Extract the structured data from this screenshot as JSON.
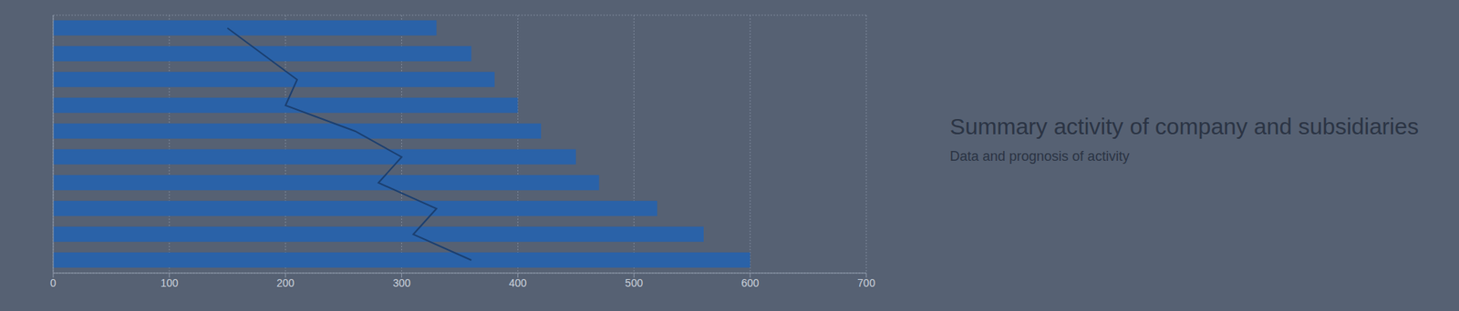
{
  "chart_data": {
    "type": "bar",
    "title": "Summary activity of company and subsidiaries",
    "subtitle": "Data and prognosis of activity",
    "orientation": "horizontal",
    "categories": [
      null,
      null,
      null,
      null,
      null,
      null,
      null,
      null,
      null,
      null
    ],
    "series": [
      {
        "type": "bar",
        "color": "#2a62a8",
        "values": [
          330,
          360,
          380,
          400,
          420,
          450,
          470,
          520,
          560,
          600
        ]
      },
      {
        "type": "line",
        "color": "#1b3f70",
        "values": [
          150,
          180,
          210,
          200,
          260,
          300,
          280,
          330,
          310,
          360
        ]
      }
    ],
    "xlim": [
      0,
      700
    ],
    "xticks": [
      0,
      100,
      200,
      300,
      400,
      500,
      600,
      700
    ],
    "grid": true,
    "tick_labels": "x"
  }
}
